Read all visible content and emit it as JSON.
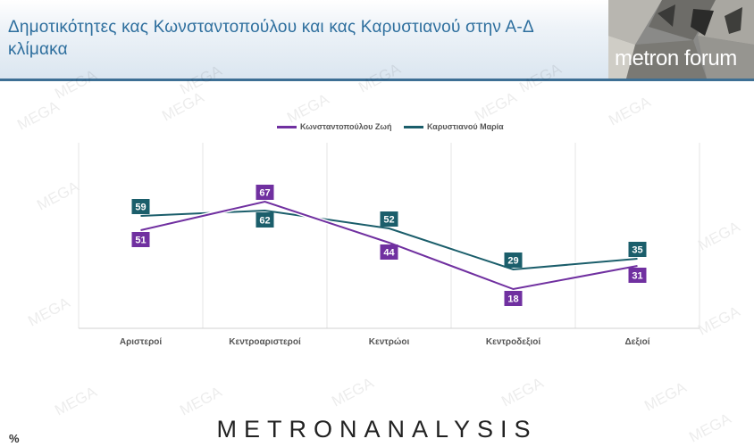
{
  "title": "Δημοτικότητες κας Κωνσταντοπούλου και κας Καρυστιανού στην Α-Δ κλίμακα",
  "brand_logo": "metron forum",
  "watermark": "MEGA",
  "footer_logo": "METRONANALYSIS",
  "percent_symbol": "%",
  "colors": {
    "series1": "#7030a0",
    "series2": "#1b5e6b",
    "title": "#2e6f9e"
  },
  "chart_data": {
    "type": "line",
    "categories": [
      "Αριστεροί",
      "Κεντροαριστεροί",
      "Κεντρώοι",
      "Κεντροδεξιοί",
      "Δεξιοί"
    ],
    "series": [
      {
        "name": "Κωνσταντοπούλου Ζωή",
        "values": [
          51,
          67,
          44,
          18,
          31
        ]
      },
      {
        "name": "Καρυστιανού Μαρία",
        "values": [
          59,
          62,
          52,
          29,
          35
        ]
      }
    ],
    "legend_position": "top",
    "grid": "vertical"
  }
}
